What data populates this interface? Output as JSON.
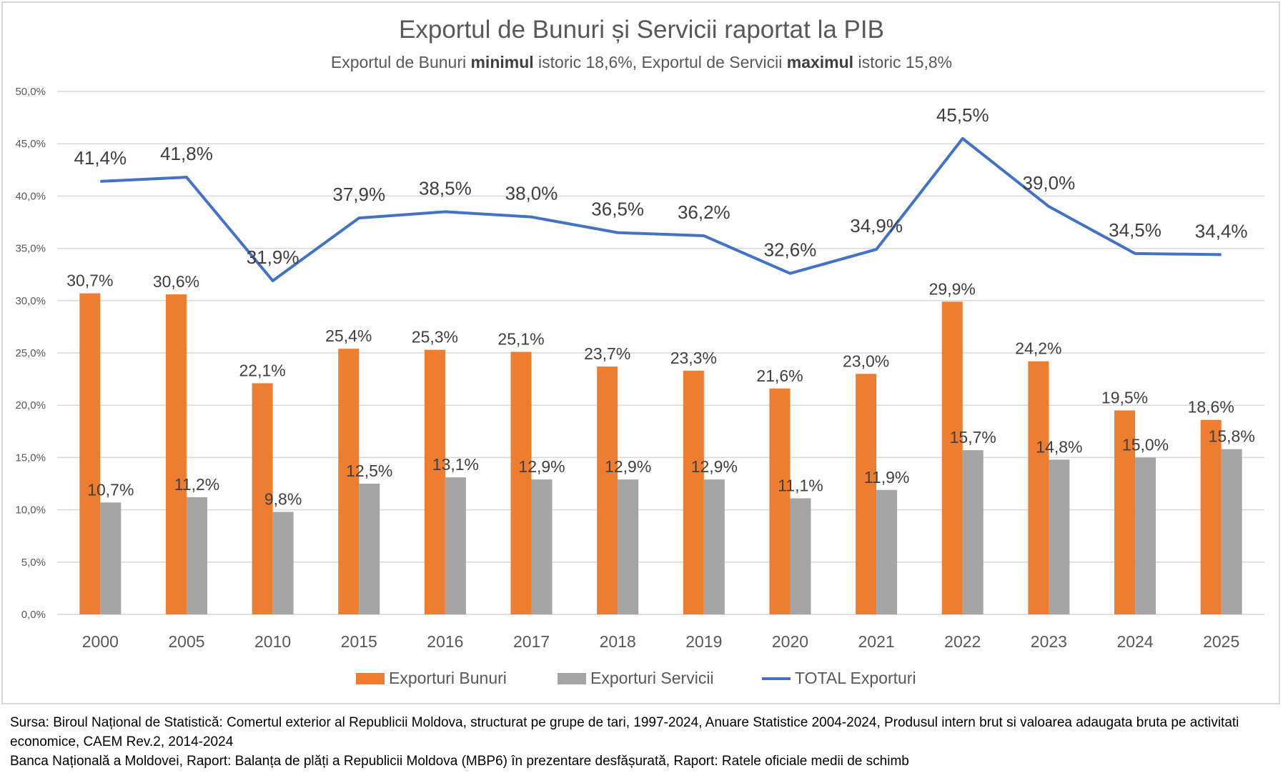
{
  "chart_data": {
    "type": "bar",
    "title": "Exportul de Bunuri și Servicii raportat la PIB",
    "subtitle": {
      "part1": "Exportul de Bunuri ",
      "bold1": "minimul",
      "part2": " istoric 18,6%, Exportul de Servicii ",
      "bold2": "maximul",
      "part3": " istoric 15,8%"
    },
    "categories": [
      "2000",
      "2005",
      "2010",
      "2015",
      "2016",
      "2017",
      "2018",
      "2019",
      "2020",
      "2021",
      "2022",
      "2023",
      "2024",
      "2025"
    ],
    "series": [
      {
        "name": "Exporturi Bunuri",
        "type": "bar",
        "color": "#ed7d31",
        "values": [
          30.7,
          30.6,
          22.1,
          25.4,
          25.3,
          25.1,
          23.7,
          23.3,
          21.6,
          23.0,
          29.9,
          24.2,
          19.5,
          18.6
        ]
      },
      {
        "name": "Exporturi Servicii",
        "type": "bar",
        "color": "#a5a5a5",
        "values": [
          10.7,
          11.2,
          9.8,
          12.5,
          13.1,
          12.9,
          12.9,
          12.9,
          11.1,
          11.9,
          15.7,
          14.8,
          15.0,
          15.8
        ]
      },
      {
        "name": "TOTAL Exporturi",
        "type": "line",
        "color": "#4472c4",
        "values": [
          41.4,
          41.8,
          31.9,
          37.9,
          38.5,
          38.0,
          36.5,
          36.2,
          32.6,
          34.9,
          45.5,
          39.0,
          34.5,
          34.4
        ]
      }
    ],
    "ylim": [
      0,
      50
    ],
    "yticks": [
      "0,0%",
      "5,0%",
      "10,0%",
      "15,0%",
      "20,0%",
      "25,0%",
      "30,0%",
      "35,0%",
      "40,0%",
      "45,0%",
      "50,0%"
    ],
    "grid": true,
    "legend": "bottom",
    "xlabel": "",
    "ylabel": ""
  },
  "source": {
    "line1": "Sursa: Biroul Național de Statistică: Comertul exterior al Republicii Moldova, structurat pe grupe de tari, 1997-2024, Anuare Statistice 2004-2024, Produsul intern brut si valoarea adaugata bruta pe activitati economice, CAEM Rev.2, 2014-2024",
    "line2": "Banca Națională a Moldovei, Raport: Balanța de plăți a Republicii Moldova (MBP6) în prezentare desfășurată, Raport: Ratele oficiale medii de schimb"
  }
}
